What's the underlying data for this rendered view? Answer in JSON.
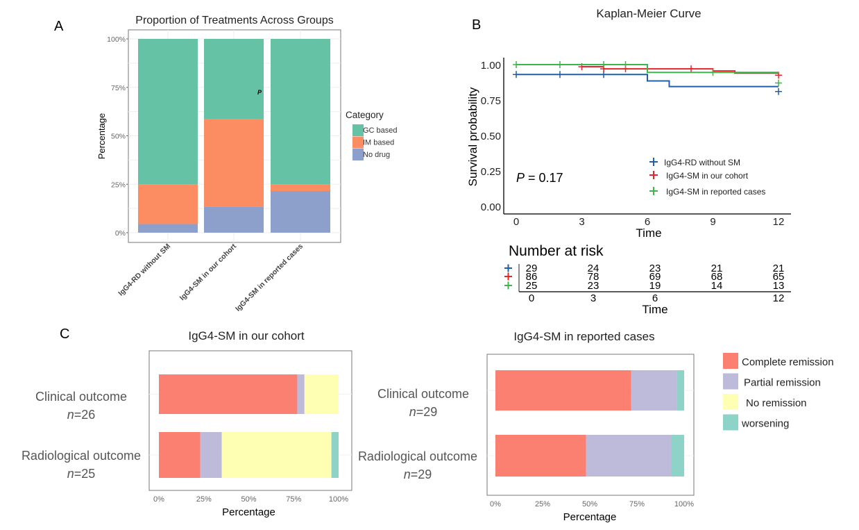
{
  "panel_labels": {
    "a": "A",
    "b": "B",
    "c": "C"
  },
  "chart_data": [
    {
      "type": "bar",
      "stacked": true,
      "title": "Proportion of Treatments Across Groups",
      "xlabel": "",
      "ylabel": "Percentage",
      "ylim": [
        0,
        100
      ],
      "yticks": [
        "0%",
        "25%",
        "50%",
        "75%",
        "100%"
      ],
      "categories": [
        "IgG4-RD without SM",
        "IgG4-SM in our cohort",
        "IgG4-SM in reported cases"
      ],
      "legend_title": "Category",
      "legend_position": "right",
      "grid": true,
      "annotation": "P",
      "series": [
        {
          "name": "No drug",
          "color": "#8da0cb",
          "values": [
            4.5,
            13.5,
            21.5
          ]
        },
        {
          "name": "IM based",
          "color": "#fc8d62",
          "values": [
            20.5,
            45,
            3.5
          ]
        },
        {
          "name": "GC based",
          "color": "#66c2a5",
          "values": [
            75,
            41.5,
            75
          ]
        }
      ]
    },
    {
      "type": "line",
      "step": true,
      "title": "Kaplan-Meier Curve",
      "xlabel": "Time",
      "ylabel": "Survival probability",
      "xlim": [
        0,
        12
      ],
      "ylim": [
        0,
        1
      ],
      "xticks": [
        "0",
        "3",
        "6",
        "9",
        "12"
      ],
      "yticks": [
        "0.00",
        "0.25",
        "0.50",
        "0.75",
        "1.00"
      ],
      "annotation": {
        "p_label": "P",
        "p_value": " = 0.17"
      },
      "legend_position": "bottom-right",
      "series": [
        {
          "name": "IgG4-RD without SM",
          "color": "#1f5fa8",
          "steps": [
            [
              0,
              0.93
            ],
            [
              6,
              0.885
            ],
            [
              7,
              0.845
            ],
            [
              12,
              0.845
            ]
          ],
          "censor": [
            [
              0,
              0.93
            ],
            [
              2,
              0.93
            ],
            [
              4,
              0.93
            ],
            [
              12,
              0.81
            ]
          ]
        },
        {
          "name": "IgG4-SM in our cohort",
          "color": "#e8242a",
          "steps": [
            [
              3,
              0.985
            ],
            [
              4,
              0.97
            ],
            [
              9,
              0.955
            ],
            [
              10,
              0.94
            ],
            [
              12,
              0.94
            ]
          ],
          "censor": [
            [
              3,
              0.985
            ],
            [
              4,
              0.97
            ],
            [
              5,
              0.97
            ],
            [
              8,
              0.97
            ],
            [
              12,
              0.925
            ]
          ]
        },
        {
          "name": "IgG4-SM in reported cases",
          "color": "#3cb54a",
          "steps": [
            [
              0,
              1.0
            ],
            [
              6,
              0.945
            ],
            [
              12,
              0.945
            ]
          ],
          "censor": [
            [
              0,
              1.0
            ],
            [
              2,
              1.0
            ],
            [
              4,
              1.0
            ],
            [
              5,
              1.0
            ],
            [
              9,
              0.945
            ],
            [
              12,
              0.87
            ]
          ]
        }
      ],
      "risk_table": {
        "title": "Number at risk",
        "xlabel": "Time",
        "times": [
          0,
          3,
          6,
          9,
          12
        ],
        "xticks": [
          "0",
          "3",
          "6",
          "",
          "12"
        ],
        "rows": [
          {
            "color": "#1f5fa8",
            "counts": [
              "29",
              "24",
              "23",
              "21",
              "21"
            ]
          },
          {
            "color": "#e8242a",
            "counts": [
              "86",
              "78",
              "69",
              "68",
              "65"
            ]
          },
          {
            "color": "#3cb54a",
            "counts": [
              "25",
              "23",
              "19",
              "14",
              "13"
            ]
          }
        ]
      }
    },
    {
      "type": "bar",
      "orientation": "horizontal",
      "stacked": true,
      "title": "IgG4-SM in our cohort",
      "xlabel": "Percentage",
      "xlim": [
        0,
        100
      ],
      "xticks": [
        "0%",
        "25%",
        "50%",
        "75%",
        "100%"
      ],
      "categories": [
        {
          "label": "Clinical outcome",
          "n_label": "n",
          "n_value": "=26"
        },
        {
          "label": "Radiological outcome",
          "n_label": "n",
          "n_value": "=25"
        }
      ],
      "series": [
        {
          "name": "Complete remission",
          "color": "#fb8072",
          "values": [
            77,
            23
          ]
        },
        {
          "name": "Partial remission",
          "color": "#bebada",
          "values": [
            4,
            12
          ]
        },
        {
          "name": "No remission",
          "color": "#ffffb3",
          "values": [
            19,
            61
          ]
        },
        {
          "name": "worsening",
          "color": "#8dd3c7",
          "values": [
            0,
            4
          ]
        }
      ]
    },
    {
      "type": "bar",
      "orientation": "horizontal",
      "stacked": true,
      "title": "IgG4-SM in reported cases",
      "xlabel": "Percentage",
      "xlim": [
        0,
        100
      ],
      "xticks": [
        "0%",
        "25%",
        "50%",
        "75%",
        "100%"
      ],
      "legend_position": "right",
      "categories": [
        {
          "label": "Clinical outcome",
          "n_label": "n",
          "n_value": "=29"
        },
        {
          "label": "Radiological outcome",
          "n_label": "n",
          "n_value": "=29"
        }
      ],
      "series": [
        {
          "name": "Complete remission",
          "color": "#fb8072",
          "values": [
            72,
            48
          ]
        },
        {
          "name": "Partial remission",
          "color": "#bebada",
          "values": [
            24,
            45
          ]
        },
        {
          "name": "No remission",
          "color": "#ffffb3",
          "values": [
            0,
            0
          ]
        },
        {
          "name": "worsening",
          "color": "#8dd3c7",
          "values": [
            4,
            7
          ]
        }
      ]
    }
  ]
}
